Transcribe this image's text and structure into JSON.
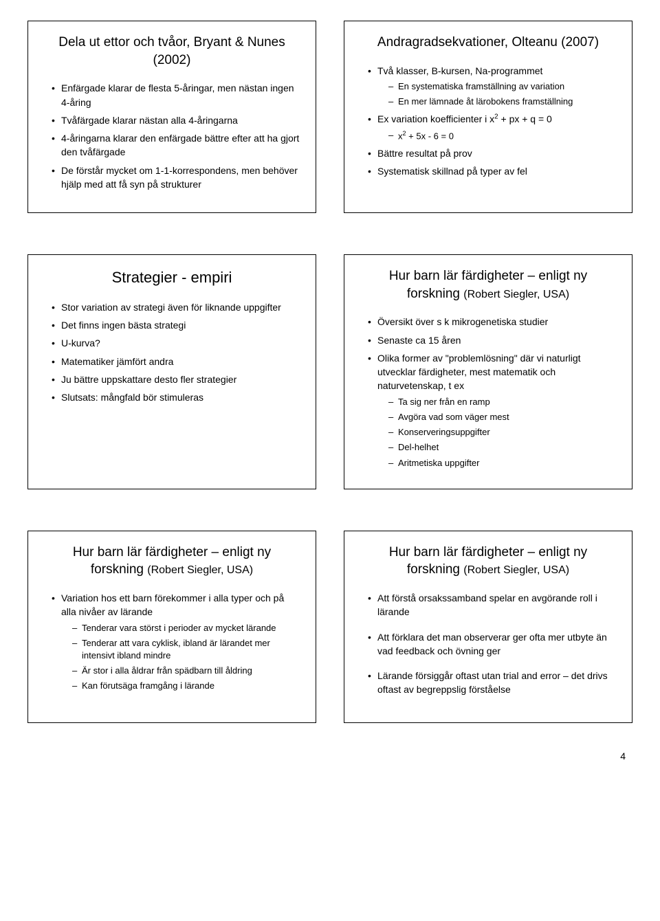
{
  "page_number": "4",
  "slides": [
    {
      "title": "Dela ut ettor och tvåor, Bryant & Nunes (2002)",
      "title_fontsize": 19,
      "items": [
        {
          "text": "Enfärgade klarar de flesta 5-åringar, men nästan ingen 4-åring"
        },
        {
          "text": "Tvåfärgade klarar nästan alla 4-åringarna"
        },
        {
          "text": "4-åringarna klarar den enfärgade bättre efter att ha gjort den tvåfärgade"
        },
        {
          "text": "De förstår mycket om 1-1-korrespondens, men behöver hjälp med att få syn på strukturer"
        }
      ]
    },
    {
      "title": "Andragradsekvationer, Olteanu (2007)",
      "title_fontsize": 19,
      "items": [
        {
          "text": "Två klasser, B-kursen, Na-programmet",
          "sub": [
            "En systematiska framställning av variation",
            "En mer lämnade åt lärobokens framställning"
          ]
        },
        {
          "html": "Ex variation koefficienter i  x<sup>2</sup> + px + q = 0",
          "sub_html": [
            "x<sup>2</sup> + 5x - 6 = 0"
          ]
        },
        {
          "text": "Bättre resultat på prov"
        },
        {
          "text": "Systematisk skillnad på typer av fel"
        }
      ]
    },
    {
      "title": "Strategier - empiri",
      "title_fontsize": 22,
      "items": [
        {
          "text": "Stor variation av strategi även för liknande uppgifter"
        },
        {
          "text": "Det finns ingen bästa strategi"
        },
        {
          "text": "U-kurva?"
        },
        {
          "text": "Matematiker jämfört andra"
        },
        {
          "text": "Ju bättre uppskattare desto fler strategier"
        },
        {
          "text": "Slutsats: mångfald bör stimuleras"
        }
      ]
    },
    {
      "title_html": "Hur barn lär färdigheter – enligt ny<br>forskning <span class=\"sub\">(Robert Siegler, USA)</span>",
      "items": [
        {
          "text": "Översikt över s k mikrogenetiska studier"
        },
        {
          "text": "Senaste ca 15 åren"
        },
        {
          "text": "Olika former av \"problemlösning\" där vi naturligt utvecklar färdigheter, mest matematik och naturvetenskap, t ex",
          "sub": [
            "Ta sig ner från en ramp",
            "Avgöra vad som väger mest",
            "Konserveringsuppgifter",
            "Del-helhet",
            "Aritmetiska uppgifter"
          ]
        }
      ]
    },
    {
      "title_html": "Hur barn lär färdigheter – enligt ny<br>forskning <span class=\"sub\">(Robert Siegler, USA)</span>",
      "items": [
        {
          "text": "Variation hos ett barn förekommer i alla typer och på alla nivåer av lärande",
          "sub": [
            "Tenderar vara störst i perioder av mycket lärande",
            "Tenderar att vara cyklisk, ibland är lärandet mer intensivt ibland mindre",
            "Är stor i alla åldrar från spädbarn till åldring",
            "Kan förutsäga framgång i lärande"
          ]
        }
      ]
    },
    {
      "title_html": "Hur barn lär färdigheter – enligt ny<br>forskning <span class=\"sub\">(Robert Siegler, USA)</span>",
      "items": [
        {
          "text": "Att förstå orsakssamband spelar en avgörande roll i lärande"
        },
        {
          "spacer": true
        },
        {
          "text": "Att förklara det man observerar ger ofta mer utbyte än vad feedback och övning ger"
        },
        {
          "spacer": true
        },
        {
          "text": "Lärande försiggår oftast utan trial and error – det drivs oftast av begreppslig förståelse"
        }
      ]
    }
  ],
  "style": {
    "border_color": "#000000",
    "background_color": "#ffffff",
    "text_color": "#000000",
    "body_fontsize": 14,
    "sub_fontsize": 13,
    "font_family": "Arial"
  }
}
